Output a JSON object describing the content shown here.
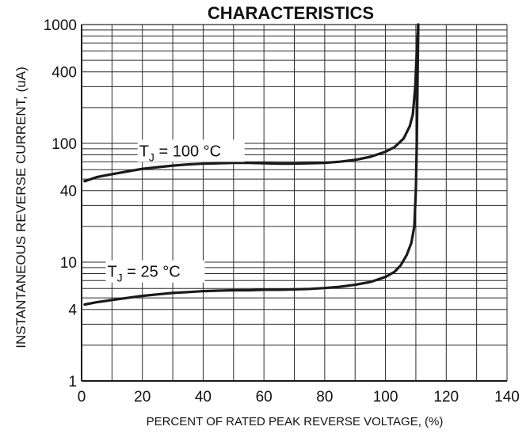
{
  "chart_data": {
    "type": "line",
    "title": "CHARACTERISTICS",
    "xlabel": "PERCENT OF RATED PEAK REVERSE VOLTAGE, (%)",
    "ylabel": "INSTANTANEOUS REVERSE CURRENT, (uA)",
    "xlim": [
      0,
      140
    ],
    "ylim": [
      1,
      1000
    ],
    "y_scale": "log",
    "grid": true,
    "x_ticks": [
      "0",
      "20",
      "40",
      "60",
      "80",
      "100",
      "120",
      "140"
    ],
    "y_ticks": [
      {
        "value": 1,
        "label": "1"
      },
      {
        "value": 4,
        "label": "4"
      },
      {
        "value": 10,
        "label": "10"
      },
      {
        "value": 40,
        "label": "40"
      },
      {
        "value": 100,
        "label": "100"
      },
      {
        "value": 400,
        "label": "400"
      },
      {
        "value": 1000,
        "label": "1000"
      }
    ],
    "colors": {
      "line": "#1a1a1a",
      "grid": "#2a2a2a"
    },
    "series": [
      {
        "name": "T_J = 100 °C",
        "x": [
          1,
          5,
          10,
          15,
          20,
          25,
          30,
          35,
          40,
          45,
          50,
          55,
          60,
          65,
          70,
          75,
          80,
          85,
          90,
          95,
          100,
          103,
          106,
          108,
          109,
          109.8,
          110.3,
          110.8
        ],
        "y": [
          48,
          52,
          55,
          58,
          61,
          63,
          65,
          66.5,
          67.5,
          68,
          68.5,
          68.5,
          68,
          67.5,
          67.5,
          68,
          68.5,
          70,
          72.5,
          77,
          85,
          93,
          110,
          140,
          175,
          300,
          600,
          1000
        ]
      },
      {
        "name": "T_J = 25 °C",
        "x": [
          1,
          5,
          10,
          15,
          20,
          25,
          30,
          35,
          40,
          45,
          50,
          55,
          60,
          65,
          70,
          75,
          80,
          85,
          90,
          95,
          100,
          103,
          105,
          107,
          108.5,
          109.5,
          110,
          110.3,
          110.6,
          110.8
        ],
        "y": [
          4.4,
          4.6,
          4.8,
          5.0,
          5.2,
          5.35,
          5.5,
          5.6,
          5.7,
          5.75,
          5.8,
          5.8,
          5.85,
          5.85,
          5.9,
          5.95,
          6.05,
          6.2,
          6.45,
          6.8,
          7.5,
          8.3,
          9.4,
          11.5,
          14.5,
          20,
          40,
          100,
          400,
          1000
        ]
      }
    ],
    "annotations": [
      {
        "text": "T",
        "subscript": "J",
        "rest": " = 100 °C",
        "series": "T_J = 100 °C"
      },
      {
        "text": "T",
        "subscript": "J",
        "rest": " = 25 °C",
        "series": "T_J = 25 °C"
      }
    ]
  }
}
